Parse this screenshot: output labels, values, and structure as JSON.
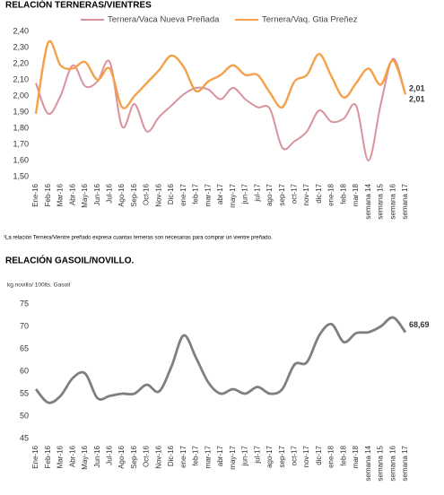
{
  "chart_data": [
    {
      "type": "line",
      "title": "RELACIÓN TERNERAS/VIENTRES",
      "categories": [
        "Ene-16",
        "Feb-16",
        "Mar-16",
        "Abr-16",
        "May-16",
        "Jun-16",
        "Jul-16",
        "Ago-16",
        "Sep-16",
        "Oct-16",
        "Nov-16",
        "Dic-16",
        "ene-17",
        "feb-17",
        "mar-17",
        "abr-17",
        "may-17",
        "jun-17",
        "jul-17",
        "ago-17",
        "sep-17",
        "oct-17",
        "nov-17",
        "dic-17",
        "ene-18",
        "feb-18",
        "mar-18",
        "semana 14",
        "semana 15",
        "semana 16",
        "semana 17"
      ],
      "series": [
        {
          "name": "Ternera/Vaca Nueva Preñada",
          "color": "#d9939c",
          "values": [
            2.08,
            1.89,
            2.0,
            2.19,
            2.06,
            2.09,
            2.21,
            1.81,
            1.95,
            1.78,
            1.87,
            1.94,
            2.01,
            2.05,
            2.04,
            1.98,
            2.05,
            1.98,
            1.93,
            1.92,
            1.68,
            1.72,
            1.78,
            1.91,
            1.84,
            1.86,
            1.94,
            1.6,
            1.95,
            2.23,
            2.01
          ],
          "value_labels": [
            null,
            null,
            null,
            null,
            null,
            null,
            null,
            null,
            null,
            null,
            null,
            null,
            null,
            null,
            null,
            null,
            null,
            null,
            null,
            null,
            null,
            null,
            null,
            null,
            null,
            null,
            null,
            null,
            null,
            null,
            "2,01"
          ]
        },
        {
          "name": "Ternera/Vaq. Gtia Preñez",
          "color": "#f5a04a",
          "values": [
            1.89,
            2.33,
            2.19,
            2.17,
            2.21,
            2.1,
            2.17,
            1.93,
            2.0,
            2.08,
            2.16,
            2.25,
            2.18,
            2.03,
            2.09,
            2.13,
            2.19,
            2.13,
            2.13,
            2.02,
            1.93,
            2.09,
            2.13,
            2.26,
            2.12,
            1.99,
            2.08,
            2.17,
            2.07,
            2.22,
            2.01
          ],
          "value_labels": [
            null,
            null,
            null,
            null,
            null,
            null,
            null,
            null,
            null,
            null,
            null,
            null,
            null,
            null,
            null,
            null,
            null,
            null,
            null,
            null,
            null,
            null,
            null,
            null,
            null,
            null,
            null,
            null,
            null,
            null,
            "2,01"
          ]
        }
      ],
      "ylim": [
        1.5,
        2.4
      ],
      "yticks": [
        {
          "value": 1.5,
          "label": "1,50"
        },
        {
          "value": 1.6,
          "label": "1,60"
        },
        {
          "value": 1.7,
          "label": "1,70"
        },
        {
          "value": 1.8,
          "label": "1,80"
        },
        {
          "value": 1.9,
          "label": "1,90"
        },
        {
          "value": 2.0,
          "label": "2,00"
        },
        {
          "value": 2.1,
          "label": "2,10"
        },
        {
          "value": 2.2,
          "label": "2,20"
        },
        {
          "value": 2.3,
          "label": "2,30"
        },
        {
          "value": 2.4,
          "label": "2,40"
        }
      ],
      "grid": false,
      "note": "¹La relación Ternera/Vientre preñado expresa cuantas terneras son necesarias para comprar un vientre preñado."
    },
    {
      "type": "line",
      "title": "RELACIÓN GASOIL/NOVILLO.",
      "y_label": "kg.novillo/ 100lts. Gasoil",
      "categories": [
        "Ene-16",
        "Feb-16",
        "Mar-16",
        "Abr-16",
        "May-16",
        "Jun-16",
        "Jul-16",
        "Ago-16",
        "Sep-16",
        "Oct-16",
        "Nov-16",
        "Dic-16",
        "ene-17",
        "feb-17",
        "mar-17",
        "abr-17",
        "may-17",
        "jun-17",
        "jul-17",
        "ago-17",
        "sep-17",
        "oct-17",
        "nov-17",
        "dic-17",
        "ene-18",
        "feb-18",
        "mar-18",
        "semana 14",
        "semana 15",
        "semana 16",
        "semana 17"
      ],
      "series": [
        {
          "name": null,
          "color": "#7f7f7f",
          "values": [
            56,
            53,
            54.5,
            58.5,
            59.5,
            54,
            54.5,
            55,
            55,
            57,
            55.5,
            61,
            68,
            63,
            57.5,
            55,
            56,
            55,
            56.5,
            55,
            56,
            61.5,
            62,
            68,
            70.5,
            66.5,
            68.5,
            68.7,
            70,
            72,
            68.69
          ],
          "value_labels": [
            null,
            null,
            null,
            null,
            null,
            null,
            null,
            null,
            null,
            null,
            null,
            null,
            null,
            null,
            null,
            null,
            null,
            null,
            null,
            null,
            null,
            null,
            null,
            null,
            null,
            null,
            null,
            null,
            null,
            null,
            "68,69"
          ]
        }
      ],
      "ylim": [
        45,
        75
      ],
      "yticks": [
        45,
        50,
        55,
        60,
        65,
        70,
        75
      ],
      "grid": false
    }
  ]
}
